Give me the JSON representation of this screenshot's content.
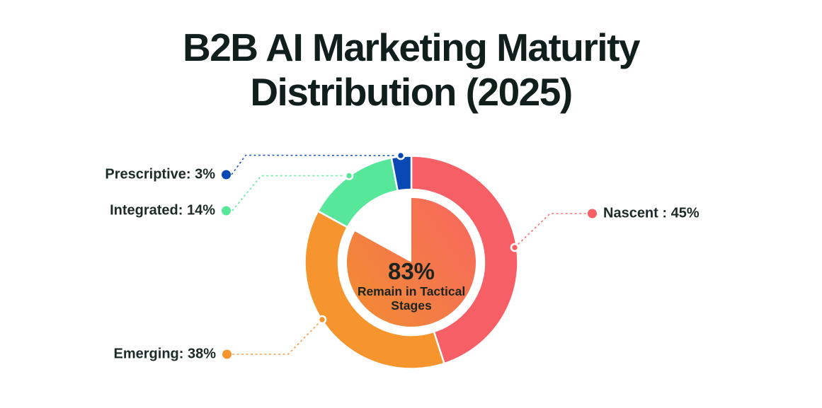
{
  "page": {
    "background": "#FFFFFF"
  },
  "title": {
    "line1": "B2B AI Marketing Maturity",
    "line2": "Distribution (2025)",
    "color": "#111F1C"
  },
  "chart_data": {
    "type": "pie",
    "variant": "donut_ring_with_inner_pie",
    "title": "B2B AI Marketing Maturity Distribution (2025)",
    "start_angle_deg": 0,
    "direction": "clockwise",
    "categories": [
      "Nascent",
      "Emerging",
      "Integrated",
      "Prescriptive"
    ],
    "values": [
      45,
      38,
      14,
      3
    ],
    "segments": [
      {
        "label": "Nascent",
        "value_pct": 45,
        "display": "Nascent : 45%",
        "color": "#F75F66"
      },
      {
        "label": "Emerging",
        "value_pct": 38,
        "display": "Emerging: 38%",
        "color": "#F6952D"
      },
      {
        "label": "Integrated",
        "value_pct": 14,
        "display": "Integrated: 14%",
        "color": "#57E79B"
      },
      {
        "label": "Prescriptive",
        "value_pct": 3,
        "display": "Prescriptive: 3%",
        "color": "#0849B4"
      }
    ],
    "inner_pie": {
      "value_pct": 83,
      "gradient_colors": [
        "#F7695D",
        "#F18B33"
      ]
    },
    "center_annotation": {
      "value": "83%",
      "caption": "Remain in Tactical Stages",
      "caption_lines": [
        "Remain in Tactical",
        "Stages"
      ]
    },
    "legend_position": "callout_labels",
    "grid": false,
    "background": "#FFFFFF"
  }
}
